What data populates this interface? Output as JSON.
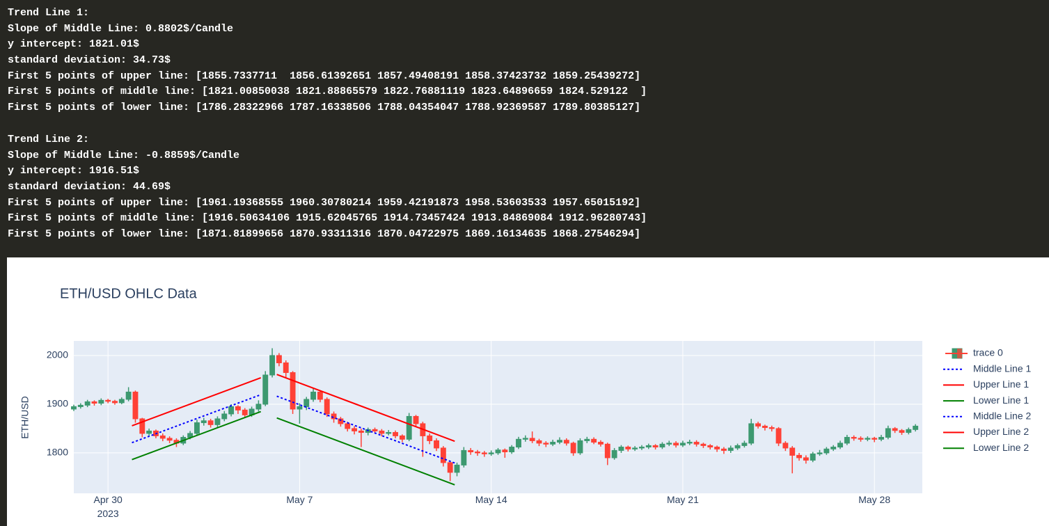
{
  "console": {
    "blocks": [
      {
        "lines": [
          "Trend Line 1:",
          "Slope of Middle Line: 0.8802$/Candle",
          "y intercept: 1821.01$",
          "standard deviation: 34.73$",
          "First 5 points of upper line: [1855.7337711  1856.61392651 1857.49408191 1858.37423732 1859.25439272]",
          "First 5 points of middle line: [1821.00850038 1821.88865579 1822.76881119 1823.64896659 1824.529122  ]",
          "First 5 points of lower line: [1786.28322966 1787.16338506 1788.04354047 1788.92369587 1789.80385127]"
        ]
      },
      {
        "lines": [
          "Trend Line 2:",
          "Slope of Middle Line: -0.8859$/Candle",
          "y intercept: 1916.51$",
          "standard deviation: 44.69$",
          "First 5 points of upper line: [1961.19368555 1960.30780214 1959.42191873 1958.53603533 1957.65015192]",
          "First 5 points of middle line: [1916.50634106 1915.62045765 1914.73457424 1913.84869084 1912.96280743]",
          "First 5 points of lower line: [1871.81899656 1870.93311316 1870.04722975 1869.16134635 1868.27546294]"
        ]
      }
    ]
  },
  "chart_data": {
    "type": "candlestick",
    "title": "ETH/USD OHLC Data",
    "y_label": "ETH/USD",
    "grid": true,
    "xlim": [
      "2023-04-28T18:00",
      "2023-05-29T18:00"
    ],
    "xticks": [
      {
        "value": "2023-04-30T00:00",
        "label": "Apr 30\n2023"
      },
      {
        "value": "2023-05-07T00:00",
        "label": "May 7"
      },
      {
        "value": "2023-05-14T00:00",
        "label": "May 14"
      },
      {
        "value": "2023-05-21T00:00",
        "label": "May 21"
      },
      {
        "value": "2023-05-28T00:00",
        "label": "May 28"
      }
    ],
    "ylim": [
      1717,
      2030
    ],
    "yticks": [
      1800,
      1900,
      2000
    ],
    "series": [
      {
        "name": "trace 0",
        "increasing_color": "#3D9970",
        "decreasing_color": "#FF4136",
        "x": [
          "2023-04-28T18:00",
          "2023-04-29T00:00",
          "2023-04-29T06:00",
          "2023-04-29T12:00",
          "2023-04-29T18:00",
          "2023-04-30T00:00",
          "2023-04-30T06:00",
          "2023-04-30T12:00",
          "2023-04-30T18:00",
          "2023-05-01T00:00",
          "2023-05-01T06:00",
          "2023-05-01T12:00",
          "2023-05-01T18:00",
          "2023-05-02T00:00",
          "2023-05-02T06:00",
          "2023-05-02T12:00",
          "2023-05-02T18:00",
          "2023-05-03T00:00",
          "2023-05-03T06:00",
          "2023-05-03T12:00",
          "2023-05-03T18:00",
          "2023-05-04T00:00",
          "2023-05-04T06:00",
          "2023-05-04T12:00",
          "2023-05-04T18:00",
          "2023-05-05T00:00",
          "2023-05-05T06:00",
          "2023-05-05T12:00",
          "2023-05-05T18:00",
          "2023-05-06T00:00",
          "2023-05-06T06:00",
          "2023-05-06T12:00",
          "2023-05-06T18:00",
          "2023-05-07T00:00",
          "2023-05-07T06:00",
          "2023-05-07T12:00",
          "2023-05-07T18:00",
          "2023-05-08T00:00",
          "2023-05-08T06:00",
          "2023-05-08T12:00",
          "2023-05-08T18:00",
          "2023-05-09T00:00",
          "2023-05-09T06:00",
          "2023-05-09T12:00",
          "2023-05-09T18:00",
          "2023-05-10T00:00",
          "2023-05-10T06:00",
          "2023-05-10T12:00",
          "2023-05-10T18:00",
          "2023-05-11T00:00",
          "2023-05-11T06:00",
          "2023-05-11T12:00",
          "2023-05-11T18:00",
          "2023-05-12T00:00",
          "2023-05-12T06:00",
          "2023-05-12T12:00",
          "2023-05-12T18:00",
          "2023-05-13T00:00",
          "2023-05-13T06:00",
          "2023-05-13T12:00",
          "2023-05-13T18:00",
          "2023-05-14T00:00",
          "2023-05-14T06:00",
          "2023-05-14T12:00",
          "2023-05-14T18:00",
          "2023-05-15T00:00",
          "2023-05-15T06:00",
          "2023-05-15T12:00",
          "2023-05-15T18:00",
          "2023-05-16T00:00",
          "2023-05-16T06:00",
          "2023-05-16T12:00",
          "2023-05-16T18:00",
          "2023-05-17T00:00",
          "2023-05-17T06:00",
          "2023-05-17T12:00",
          "2023-05-17T18:00",
          "2023-05-18T00:00",
          "2023-05-18T06:00",
          "2023-05-18T12:00",
          "2023-05-18T18:00",
          "2023-05-19T00:00",
          "2023-05-19T06:00",
          "2023-05-19T12:00",
          "2023-05-19T18:00",
          "2023-05-20T00:00",
          "2023-05-20T06:00",
          "2023-05-20T12:00",
          "2023-05-20T18:00",
          "2023-05-21T00:00",
          "2023-05-21T06:00",
          "2023-05-21T12:00",
          "2023-05-21T18:00",
          "2023-05-22T00:00",
          "2023-05-22T06:00",
          "2023-05-22T12:00",
          "2023-05-22T18:00",
          "2023-05-23T00:00",
          "2023-05-23T06:00",
          "2023-05-23T12:00",
          "2023-05-23T18:00",
          "2023-05-24T00:00",
          "2023-05-24T06:00",
          "2023-05-24T12:00",
          "2023-05-24T18:00",
          "2023-05-25T00:00",
          "2023-05-25T06:00",
          "2023-05-25T12:00",
          "2023-05-25T18:00",
          "2023-05-26T00:00",
          "2023-05-26T06:00",
          "2023-05-26T12:00",
          "2023-05-26T18:00",
          "2023-05-27T00:00",
          "2023-05-27T06:00",
          "2023-05-27T12:00",
          "2023-05-27T18:00",
          "2023-05-28T00:00",
          "2023-05-28T06:00",
          "2023-05-28T12:00",
          "2023-05-28T18:00",
          "2023-05-29T00:00",
          "2023-05-29T06:00",
          "2023-05-29T12:00"
        ],
        "open": [
          1890,
          1895,
          1898,
          1905,
          1902,
          1908,
          1906,
          1903,
          1910,
          1925,
          1870,
          1840,
          1845,
          1835,
          1830,
          1826,
          1820,
          1832,
          1840,
          1862,
          1866,
          1858,
          1870,
          1880,
          1895,
          1888,
          1878,
          1890,
          1900,
          1960,
          2000,
          1985,
          1965,
          1890,
          1895,
          1910,
          1925,
          1910,
          1880,
          1870,
          1860,
          1850,
          1845,
          1842,
          1848,
          1845,
          1840,
          1842,
          1835,
          1828,
          1875,
          1860,
          1835,
          1825,
          1810,
          1780,
          1760,
          1775,
          1805,
          1802,
          1800,
          1798,
          1800,
          1806,
          1802,
          1812,
          1828,
          1830,
          1825,
          1820,
          1818,
          1822,
          1826,
          1820,
          1800,
          1825,
          1828,
          1822,
          1818,
          1790,
          1805,
          1812,
          1808,
          1810,
          1812,
          1815,
          1812,
          1818,
          1820,
          1816,
          1820,
          1822,
          1818,
          1815,
          1812,
          1808,
          1805,
          1810,
          1815,
          1820,
          1860,
          1855,
          1852,
          1850,
          1820,
          1810,
          1795,
          1790,
          1785,
          1798,
          1800,
          1808,
          1812,
          1820,
          1832,
          1830,
          1828,
          1830,
          1828,
          1832,
          1850,
          1846,
          1842,
          1848
        ],
        "high": [
          1899,
          1902,
          1909,
          1908,
          1912,
          1911,
          1909,
          1914,
          1935,
          1928,
          1872,
          1850,
          1848,
          1840,
          1834,
          1830,
          1836,
          1845,
          1868,
          1872,
          1870,
          1875,
          1886,
          1900,
          1898,
          1892,
          1895,
          1908,
          1968,
          2015,
          2005,
          1990,
          1968,
          1902,
          1915,
          1932,
          1928,
          1914,
          1885,
          1874,
          1864,
          1855,
          1850,
          1852,
          1852,
          1849,
          1847,
          1846,
          1838,
          1882,
          1878,
          1864,
          1840,
          1830,
          1814,
          1784,
          1780,
          1812,
          1810,
          1806,
          1804,
          1805,
          1810,
          1809,
          1816,
          1833,
          1836,
          1844,
          1829,
          1824,
          1827,
          1832,
          1830,
          1823,
          1830,
          1833,
          1832,
          1826,
          1821,
          1810,
          1816,
          1815,
          1814,
          1816,
          1819,
          1818,
          1822,
          1825,
          1824,
          1825,
          1827,
          1826,
          1821,
          1818,
          1815,
          1812,
          1815,
          1819,
          1825,
          1870,
          1864,
          1858,
          1856,
          1853,
          1824,
          1814,
          1800,
          1795,
          1802,
          1806,
          1812,
          1816,
          1825,
          1837,
          1836,
          1834,
          1834,
          1833,
          1837,
          1856,
          1853,
          1849,
          1852,
          1859
        ],
        "low": [
          1886,
          1891,
          1894,
          1897,
          1898,
          1902,
          1899,
          1900,
          1906,
          1862,
          1832,
          1835,
          1830,
          1824,
          1820,
          1812,
          1816,
          1828,
          1836,
          1856,
          1852,
          1852,
          1865,
          1875,
          1880,
          1872,
          1874,
          1885,
          1896,
          1955,
          1978,
          1955,
          1880,
          1860,
          1888,
          1905,
          1904,
          1874,
          1862,
          1854,
          1844,
          1838,
          1812,
          1836,
          1840,
          1834,
          1836,
          1830,
          1822,
          1824,
          1855,
          1792,
          1818,
          1804,
          1772,
          1742,
          1752,
          1770,
          1796,
          1794,
          1792,
          1794,
          1796,
          1790,
          1798,
          1808,
          1823,
          1820,
          1814,
          1812,
          1814,
          1818,
          1815,
          1794,
          1796,
          1820,
          1818,
          1813,
          1775,
          1786,
          1800,
          1803,
          1804,
          1806,
          1808,
          1807,
          1808,
          1814,
          1811,
          1812,
          1816,
          1813,
          1810,
          1807,
          1802,
          1798,
          1800,
          1806,
          1811,
          1816,
          1850,
          1846,
          1844,
          1814,
          1804,
          1758,
          1784,
          1778,
          1781,
          1794,
          1796,
          1804,
          1808,
          1816,
          1825,
          1823,
          1824,
          1822,
          1824,
          1828,
          1841,
          1837,
          1838,
          1844
        ],
        "close": [
          1895,
          1898,
          1905,
          1902,
          1908,
          1906,
          1903,
          1910,
          1925,
          1870,
          1840,
          1845,
          1835,
          1830,
          1826,
          1820,
          1832,
          1840,
          1862,
          1866,
          1858,
          1870,
          1880,
          1895,
          1888,
          1878,
          1890,
          1900,
          1960,
          2000,
          1985,
          1965,
          1890,
          1895,
          1910,
          1925,
          1910,
          1880,
          1870,
          1860,
          1850,
          1845,
          1842,
          1848,
          1845,
          1840,
          1842,
          1835,
          1828,
          1875,
          1860,
          1835,
          1825,
          1810,
          1780,
          1760,
          1775,
          1805,
          1802,
          1800,
          1798,
          1800,
          1806,
          1802,
          1812,
          1828,
          1830,
          1825,
          1820,
          1818,
          1822,
          1826,
          1820,
          1800,
          1825,
          1828,
          1822,
          1818,
          1790,
          1805,
          1812,
          1808,
          1810,
          1812,
          1815,
          1812,
          1818,
          1820,
          1816,
          1820,
          1822,
          1818,
          1815,
          1812,
          1808,
          1805,
          1810,
          1815,
          1820,
          1860,
          1855,
          1852,
          1850,
          1820,
          1810,
          1795,
          1790,
          1785,
          1798,
          1800,
          1808,
          1812,
          1820,
          1832,
          1830,
          1828,
          1830,
          1828,
          1832,
          1850,
          1846,
          1842,
          1848,
          1855
        ]
      },
      {
        "name": "Middle Line 1",
        "color": "#0000ff",
        "dash": "dot",
        "x": [
          "2023-04-30T21:00",
          "2023-05-05T14:00"
        ],
        "values": [
          1821.01,
          1919.6
        ]
      },
      {
        "name": "Upper Line 1",
        "color": "#ff0000",
        "dash": "solid",
        "x": [
          "2023-04-30T21:00",
          "2023-05-05T14:00"
        ],
        "values": [
          1855.73,
          1954.3
        ]
      },
      {
        "name": "Lower Line 1",
        "color": "#008000",
        "dash": "solid",
        "x": [
          "2023-04-30T21:00",
          "2023-05-05T14:00"
        ],
        "values": [
          1786.28,
          1884.9
        ]
      },
      {
        "name": "Middle Line 2",
        "color": "#0000ff",
        "dash": "dot",
        "x": [
          "2023-05-06T04:00",
          "2023-05-12T16:00"
        ],
        "values": [
          1916.51,
          1779.2
        ]
      },
      {
        "name": "Upper Line 2",
        "color": "#ff0000",
        "dash": "solid",
        "x": [
          "2023-05-06T04:00",
          "2023-05-12T16:00"
        ],
        "values": [
          1961.19,
          1823.9
        ]
      },
      {
        "name": "Lower Line 2",
        "color": "#008000",
        "dash": "solid",
        "x": [
          "2023-05-06T04:00",
          "2023-05-12T16:00"
        ],
        "values": [
          1871.82,
          1734.5
        ]
      }
    ]
  }
}
